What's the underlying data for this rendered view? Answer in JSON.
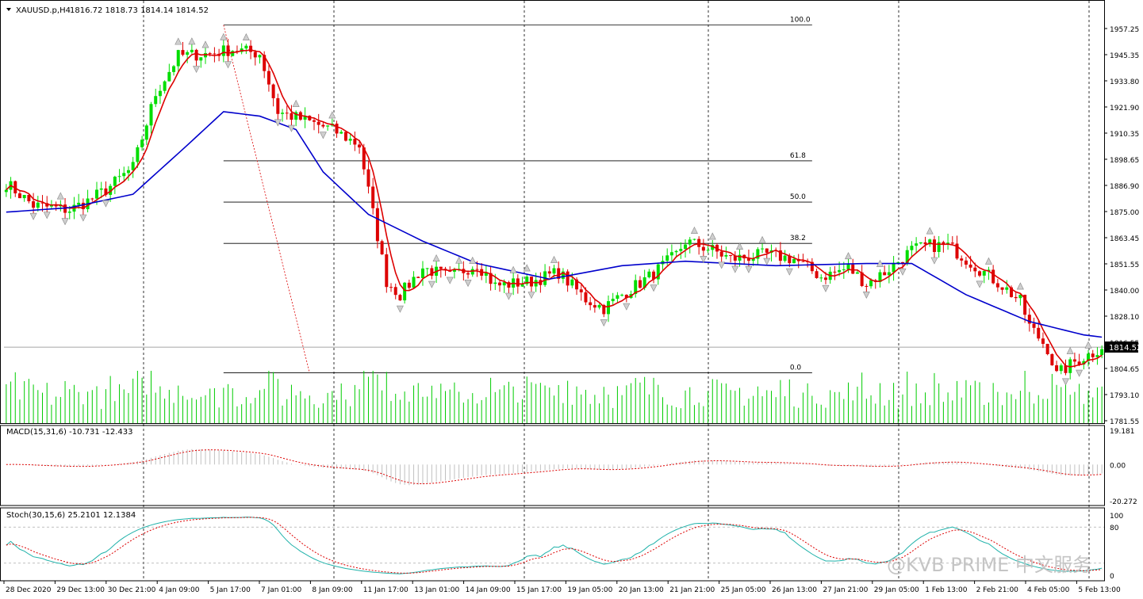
{
  "header": {
    "symbol": "XAUUSD.p,H4",
    "ohlc": "1816.72 1818.73 1814.14 1814.52"
  },
  "current_price": "1814.52",
  "colors": {
    "bull": "#00dd00",
    "bear": "#dd0000",
    "ma_fast": "#dd0000",
    "ma_slow": "#0000cc",
    "volume": "#00cc00",
    "fib": "#000000",
    "stoch_main": "#20b2aa",
    "stoch_signal": "#dd0000"
  },
  "watermark": "@KVB PRIME 中文服务",
  "chart_data": [
    {
      "type": "candlestick",
      "y_ticks": [
        "1957.25",
        "1945.35",
        "1933.80",
        "1921.90",
        "1910.35",
        "1898.65",
        "1886.90",
        "1875.00",
        "1863.45",
        "1851.55",
        "1840.00",
        "1828.10",
        "1816.55",
        "1804.65",
        "1793.10",
        "1781.55"
      ],
      "ylim": [
        1781.55,
        1957.25
      ],
      "x_ticks": [
        "28 Dec 2020",
        "29 Dec 13:00",
        "30 Dec 21:00",
        "4 Jan 09:00",
        "5 Jan 17:00",
        "7 Jan 01:00",
        "8 Jan 09:00",
        "11 Jan 17:00",
        "13 Jan 01:00",
        "14 Jan 09:00",
        "15 Jan 17:00",
        "19 Jan 05:00",
        "20 Jan 13:00",
        "21 Jan 21:00",
        "25 Jan 05:00",
        "26 Jan 13:00",
        "27 Jan 21:00",
        "29 Jan 05:00",
        "1 Feb 13:00",
        "2 Feb 21:00",
        "4 Feb 05:00",
        "5 Feb 13:00"
      ],
      "price_path": [
        [
          0,
          1888
        ],
        [
          6,
          1878
        ],
        [
          14,
          1876
        ],
        [
          18,
          1880
        ],
        [
          22,
          1885
        ],
        [
          28,
          1895
        ],
        [
          33,
          1928
        ],
        [
          38,
          1945
        ],
        [
          45,
          1946
        ],
        [
          50,
          1948
        ],
        [
          56,
          1946
        ],
        [
          60,
          1920
        ],
        [
          66,
          1916
        ],
        [
          72,
          1912
        ],
        [
          78,
          1905
        ],
        [
          84,
          1844
        ],
        [
          87,
          1838
        ],
        [
          92,
          1850
        ],
        [
          98,
          1846
        ],
        [
          104,
          1852
        ],
        [
          108,
          1842
        ],
        [
          116,
          1844
        ],
        [
          122,
          1848
        ],
        [
          128,
          1836
        ],
        [
          132,
          1832
        ],
        [
          136,
          1838
        ],
        [
          142,
          1846
        ],
        [
          148,
          1856
        ],
        [
          150,
          1862
        ],
        [
          156,
          1858
        ],
        [
          160,
          1854
        ],
        [
          168,
          1856
        ],
        [
          174,
          1854
        ],
        [
          180,
          1846
        ],
        [
          186,
          1850
        ],
        [
          190,
          1843
        ],
        [
          194,
          1848
        ],
        [
          200,
          1858
        ],
        [
          204,
          1860
        ],
        [
          208,
          1860
        ],
        [
          212,
          1854
        ],
        [
          220,
          1842
        ],
        [
          224,
          1835
        ],
        [
          226,
          1824
        ],
        [
          230,
          1814
        ],
        [
          232,
          1802
        ],
        [
          236,
          1808
        ],
        [
          240,
          1812
        ],
        [
          242,
          1815
        ]
      ],
      "fibonacci": [
        {
          "label": "100.0",
          "price": 1958.8
        },
        {
          "label": "61.8",
          "price": 1898.0
        },
        {
          "label": "50.0",
          "price": 1879.5
        },
        {
          "label": "38.2",
          "price": 1861.0
        },
        {
          "label": "0.0",
          "price": 1803.0
        }
      ],
      "fib_x_range": [
        48,
        178
      ],
      "ma_slow_path": [
        [
          0,
          1875
        ],
        [
          14,
          1877
        ],
        [
          28,
          1883
        ],
        [
          40,
          1905
        ],
        [
          48,
          1920
        ],
        [
          56,
          1918
        ],
        [
          64,
          1912
        ],
        [
          70,
          1893
        ],
        [
          80,
          1874
        ],
        [
          92,
          1862
        ],
        [
          104,
          1852
        ],
        [
          120,
          1845
        ],
        [
          136,
          1851
        ],
        [
          150,
          1853
        ],
        [
          170,
          1851
        ],
        [
          190,
          1852
        ],
        [
          200,
          1852
        ],
        [
          212,
          1838
        ],
        [
          226,
          1826
        ],
        [
          238,
          1820
        ],
        [
          242,
          1819
        ]
      ],
      "volume": {
        "ylim": [
          0,
          100
        ]
      }
    },
    {
      "type": "bar",
      "title": "MACD(15,31,6) -10.731 -12.433",
      "y_ticks": [
        "19.181",
        "0.00",
        "-20.272"
      ],
      "ylim": [
        -20.272,
        19.181
      ]
    },
    {
      "type": "line",
      "title": "Stoch(30,15,6) 25.2101 12.1384",
      "y_ticks": [
        "100",
        "80",
        "0"
      ],
      "levels": [
        80,
        20
      ],
      "ylim": [
        0,
        100
      ]
    }
  ]
}
